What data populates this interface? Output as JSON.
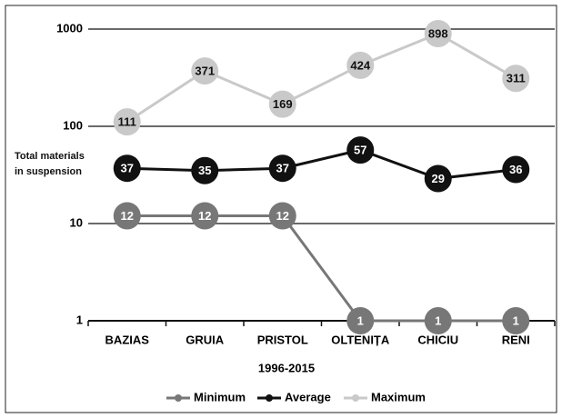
{
  "chart_data": {
    "type": "line",
    "ylabel": "Total materials in suspension",
    "xlabel": "1996-2015",
    "categories": [
      "BAZIAS",
      "GRUIA",
      "PRISTOL",
      "OLTENIȚA",
      "CHICIU",
      "RENI"
    ],
    "series": [
      {
        "name": "Minimum",
        "color": "#777777",
        "values": [
          12,
          12,
          12,
          1,
          1,
          1
        ]
      },
      {
        "name": "Average",
        "color": "#111111",
        "values": [
          37,
          35,
          37,
          57,
          29,
          36
        ]
      },
      {
        "name": "Maximum",
        "color": "#c9c9c9",
        "values": [
          111,
          371,
          169,
          424,
          898,
          311
        ]
      }
    ],
    "ylim": [
      1,
      1000
    ],
    "yticks": [
      1,
      10,
      100,
      1000
    ],
    "yscale": "log",
    "grid": true,
    "legend": "bottom"
  }
}
